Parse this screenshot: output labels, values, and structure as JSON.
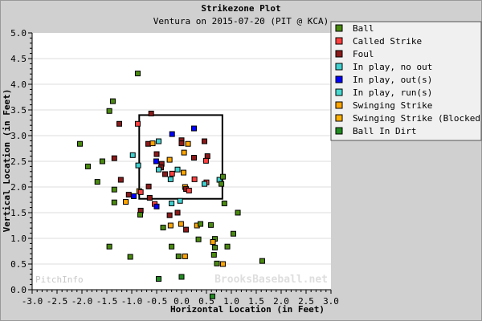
{
  "chart_data": {
    "type": "scatter",
    "title": "Strikezone Plot",
    "subtitle": "Ventura on 2015-07-20 (PIT @ KCA)",
    "xlabel": "Horizontal Location (in Feet)",
    "ylabel": "Vertical Location (in Feet)",
    "xlim": [
      -3.0,
      3.0
    ],
    "ylim": [
      0.0,
      5.0
    ],
    "xticks": [
      "-3.0",
      "-2.5",
      "-2.0",
      "-1.5",
      "-1.0",
      "-0.5",
      "0.0",
      "0.5",
      "1.0",
      "1.5",
      "2.0",
      "2.5",
      "3.0"
    ],
    "yticks": [
      "0.0",
      "0.5",
      "1.0",
      "1.5",
      "2.0",
      "2.5",
      "3.0",
      "3.5",
      "4.0",
      "4.5",
      "5.0"
    ],
    "grid": true,
    "legend_placement": "top-right",
    "strike_zone": {
      "left": -0.85,
      "right": 0.82,
      "bottom": 1.77,
      "top": 3.4
    },
    "legend": [
      {
        "name": "Ball",
        "color": "#4a8a10"
      },
      {
        "name": "Called Strike",
        "color": "#ff4040"
      },
      {
        "name": "Foul",
        "color": "#8b1a1a"
      },
      {
        "name": "In play, no out",
        "color": "#40d0d0"
      },
      {
        "name": "In play, out(s)",
        "color": "#0000ff"
      },
      {
        "name": "In play, run(s)",
        "color": "#48d8d0"
      },
      {
        "name": "Swinging Strike",
        "color": "#ffa500"
      },
      {
        "name": "Swinging Strike (Blocked)",
        "color": "#ffb000"
      },
      {
        "name": "Ball In Dirt",
        "color": "#228b22"
      }
    ],
    "points": [
      {
        "x": -0.88,
        "y": 4.21,
        "type": "Ball"
      },
      {
        "x": -1.38,
        "y": 3.67,
        "type": "Ball"
      },
      {
        "x": -1.45,
        "y": 3.48,
        "type": "Ball"
      },
      {
        "x": -1.25,
        "y": 3.23,
        "type": "Foul"
      },
      {
        "x": -0.88,
        "y": 3.23,
        "type": "Called Strike"
      },
      {
        "x": -0.61,
        "y": 3.43,
        "type": "Foul"
      },
      {
        "x": -2.04,
        "y": 2.84,
        "type": "Ball"
      },
      {
        "x": -0.98,
        "y": 2.62,
        "type": "In play, no out"
      },
      {
        "x": -1.35,
        "y": 2.56,
        "type": "Foul"
      },
      {
        "x": -1.59,
        "y": 2.5,
        "type": "Ball"
      },
      {
        "x": -1.88,
        "y": 2.4,
        "type": "Ball"
      },
      {
        "x": -0.87,
        "y": 2.42,
        "type": "In play, no out"
      },
      {
        "x": -1.69,
        "y": 2.1,
        "type": "Ball"
      },
      {
        "x": -1.22,
        "y": 2.14,
        "type": "Foul"
      },
      {
        "x": -0.19,
        "y": 3.03,
        "type": "In play, out(s)"
      },
      {
        "x": 0.25,
        "y": 3.14,
        "type": "In play, out(s)"
      },
      {
        "x": -0.67,
        "y": 2.84,
        "type": "Foul"
      },
      {
        "x": -0.58,
        "y": 2.85,
        "type": "Swinging Strike"
      },
      {
        "x": -0.46,
        "y": 2.89,
        "type": "In play, no out"
      },
      {
        "x": 0.0,
        "y": 2.91,
        "type": "Foul"
      },
      {
        "x": 0.0,
        "y": 2.85,
        "type": "Foul"
      },
      {
        "x": 0.13,
        "y": 2.84,
        "type": "Swinging Strike"
      },
      {
        "x": 0.46,
        "y": 2.89,
        "type": "Foul"
      },
      {
        "x": 0.05,
        "y": 2.67,
        "type": "Swinging Strike"
      },
      {
        "x": -0.5,
        "y": 2.64,
        "type": "Foul"
      },
      {
        "x": 0.52,
        "y": 2.6,
        "type": "Foul"
      },
      {
        "x": 0.25,
        "y": 2.57,
        "type": "Foul"
      },
      {
        "x": 0.49,
        "y": 2.51,
        "type": "Called Strike"
      },
      {
        "x": -0.24,
        "y": 2.53,
        "type": "Swinging Strike"
      },
      {
        "x": -0.51,
        "y": 2.5,
        "type": "In play, out(s)"
      },
      {
        "x": -0.4,
        "y": 2.45,
        "type": "Foul"
      },
      {
        "x": -0.41,
        "y": 2.38,
        "type": "Foul"
      },
      {
        "x": -0.46,
        "y": 2.34,
        "type": "In play, no out"
      },
      {
        "x": -0.08,
        "y": 2.34,
        "type": "In play, no out"
      },
      {
        "x": 0.04,
        "y": 2.28,
        "type": "Swinging Strike"
      },
      {
        "x": -0.33,
        "y": 2.25,
        "type": "Foul"
      },
      {
        "x": -0.19,
        "y": 2.26,
        "type": "Called Strike"
      },
      {
        "x": -0.22,
        "y": 2.15,
        "type": "In play, no out"
      },
      {
        "x": 0.26,
        "y": 2.15,
        "type": "Called Strike"
      },
      {
        "x": 0.5,
        "y": 2.09,
        "type": "Called Strike"
      },
      {
        "x": 0.46,
        "y": 2.06,
        "type": "In play, no out"
      },
      {
        "x": 0.76,
        "y": 2.14,
        "type": "In play, no out"
      },
      {
        "x": 0.83,
        "y": 2.2,
        "type": "Ball"
      },
      {
        "x": 0.8,
        "y": 2.06,
        "type": "Ball"
      },
      {
        "x": -0.66,
        "y": 2.01,
        "type": "Foul"
      },
      {
        "x": 0.07,
        "y": 2.0,
        "type": "Swinging Strike"
      },
      {
        "x": 0.09,
        "y": 1.96,
        "type": "Foul"
      },
      {
        "x": 0.15,
        "y": 1.93,
        "type": "Called Strike"
      },
      {
        "x": -1.06,
        "y": 1.85,
        "type": "Foul"
      },
      {
        "x": -0.96,
        "y": 1.82,
        "type": "In play, out(s)"
      },
      {
        "x": -0.85,
        "y": 1.92,
        "type": "Swinging Strike"
      },
      {
        "x": -0.82,
        "y": 1.9,
        "type": "Called Strike"
      },
      {
        "x": -0.64,
        "y": 1.79,
        "type": "Foul"
      },
      {
        "x": -0.54,
        "y": 1.67,
        "type": "Called Strike"
      },
      {
        "x": -0.5,
        "y": 1.62,
        "type": "In play, out(s)"
      },
      {
        "x": -0.2,
        "y": 1.68,
        "type": "In play, no out"
      },
      {
        "x": -0.03,
        "y": 1.73,
        "type": "In play, no out"
      },
      {
        "x": 0.86,
        "y": 1.68,
        "type": "Ball"
      },
      {
        "x": -1.35,
        "y": 1.95,
        "type": "Ball"
      },
      {
        "x": -1.35,
        "y": 1.7,
        "type": "Ball"
      },
      {
        "x": -1.12,
        "y": 1.71,
        "type": "Swinging Strike"
      },
      {
        "x": -0.82,
        "y": 1.54,
        "type": "Foul"
      },
      {
        "x": -0.83,
        "y": 1.46,
        "type": "Ball"
      },
      {
        "x": -0.08,
        "y": 1.5,
        "type": "Foul"
      },
      {
        "x": -0.24,
        "y": 1.45,
        "type": "Foul"
      },
      {
        "x": 1.13,
        "y": 1.5,
        "type": "Ball"
      },
      {
        "x": -0.37,
        "y": 1.21,
        "type": "Ball"
      },
      {
        "x": -0.22,
        "y": 1.25,
        "type": "Swinging Strike"
      },
      {
        "x": -0.01,
        "y": 1.28,
        "type": "Swinging Strike"
      },
      {
        "x": 0.09,
        "y": 1.17,
        "type": "Foul"
      },
      {
        "x": 0.31,
        "y": 1.25,
        "type": "Swinging Strike"
      },
      {
        "x": 0.38,
        "y": 1.28,
        "type": "Ball"
      },
      {
        "x": 0.59,
        "y": 1.26,
        "type": "Ball"
      },
      {
        "x": 1.04,
        "y": 1.09,
        "type": "Ball"
      },
      {
        "x": 0.34,
        "y": 0.98,
        "type": "Ball"
      },
      {
        "x": 0.67,
        "y": 0.99,
        "type": "Ball"
      },
      {
        "x": 0.63,
        "y": 0.93,
        "type": "Swinging Strike"
      },
      {
        "x": 0.67,
        "y": 0.82,
        "type": "Ball"
      },
      {
        "x": 0.92,
        "y": 0.84,
        "type": "Ball"
      },
      {
        "x": -1.45,
        "y": 0.84,
        "type": "Ball"
      },
      {
        "x": -0.2,
        "y": 0.84,
        "type": "Ball"
      },
      {
        "x": 0.65,
        "y": 0.68,
        "type": "Ball"
      },
      {
        "x": -1.03,
        "y": 0.64,
        "type": "Ball"
      },
      {
        "x": -0.06,
        "y": 0.65,
        "type": "Ball"
      },
      {
        "x": 0.07,
        "y": 0.65,
        "type": "Swinging Strike"
      },
      {
        "x": 0.71,
        "y": 0.51,
        "type": "Ball"
      },
      {
        "x": 0.83,
        "y": 0.5,
        "type": "Swinging Strike"
      },
      {
        "x": 1.62,
        "y": 0.56,
        "type": "Ball"
      },
      {
        "x": -0.46,
        "y": 0.21,
        "type": "Ball In Dirt"
      },
      {
        "x": 0.0,
        "y": 0.25,
        "type": "Ball In Dirt"
      },
      {
        "x": 0.62,
        "y": -0.13,
        "type": "Ball In Dirt"
      }
    ],
    "watermarks": [
      "PitchInfo",
      "BrooksBaseball.net"
    ]
  }
}
